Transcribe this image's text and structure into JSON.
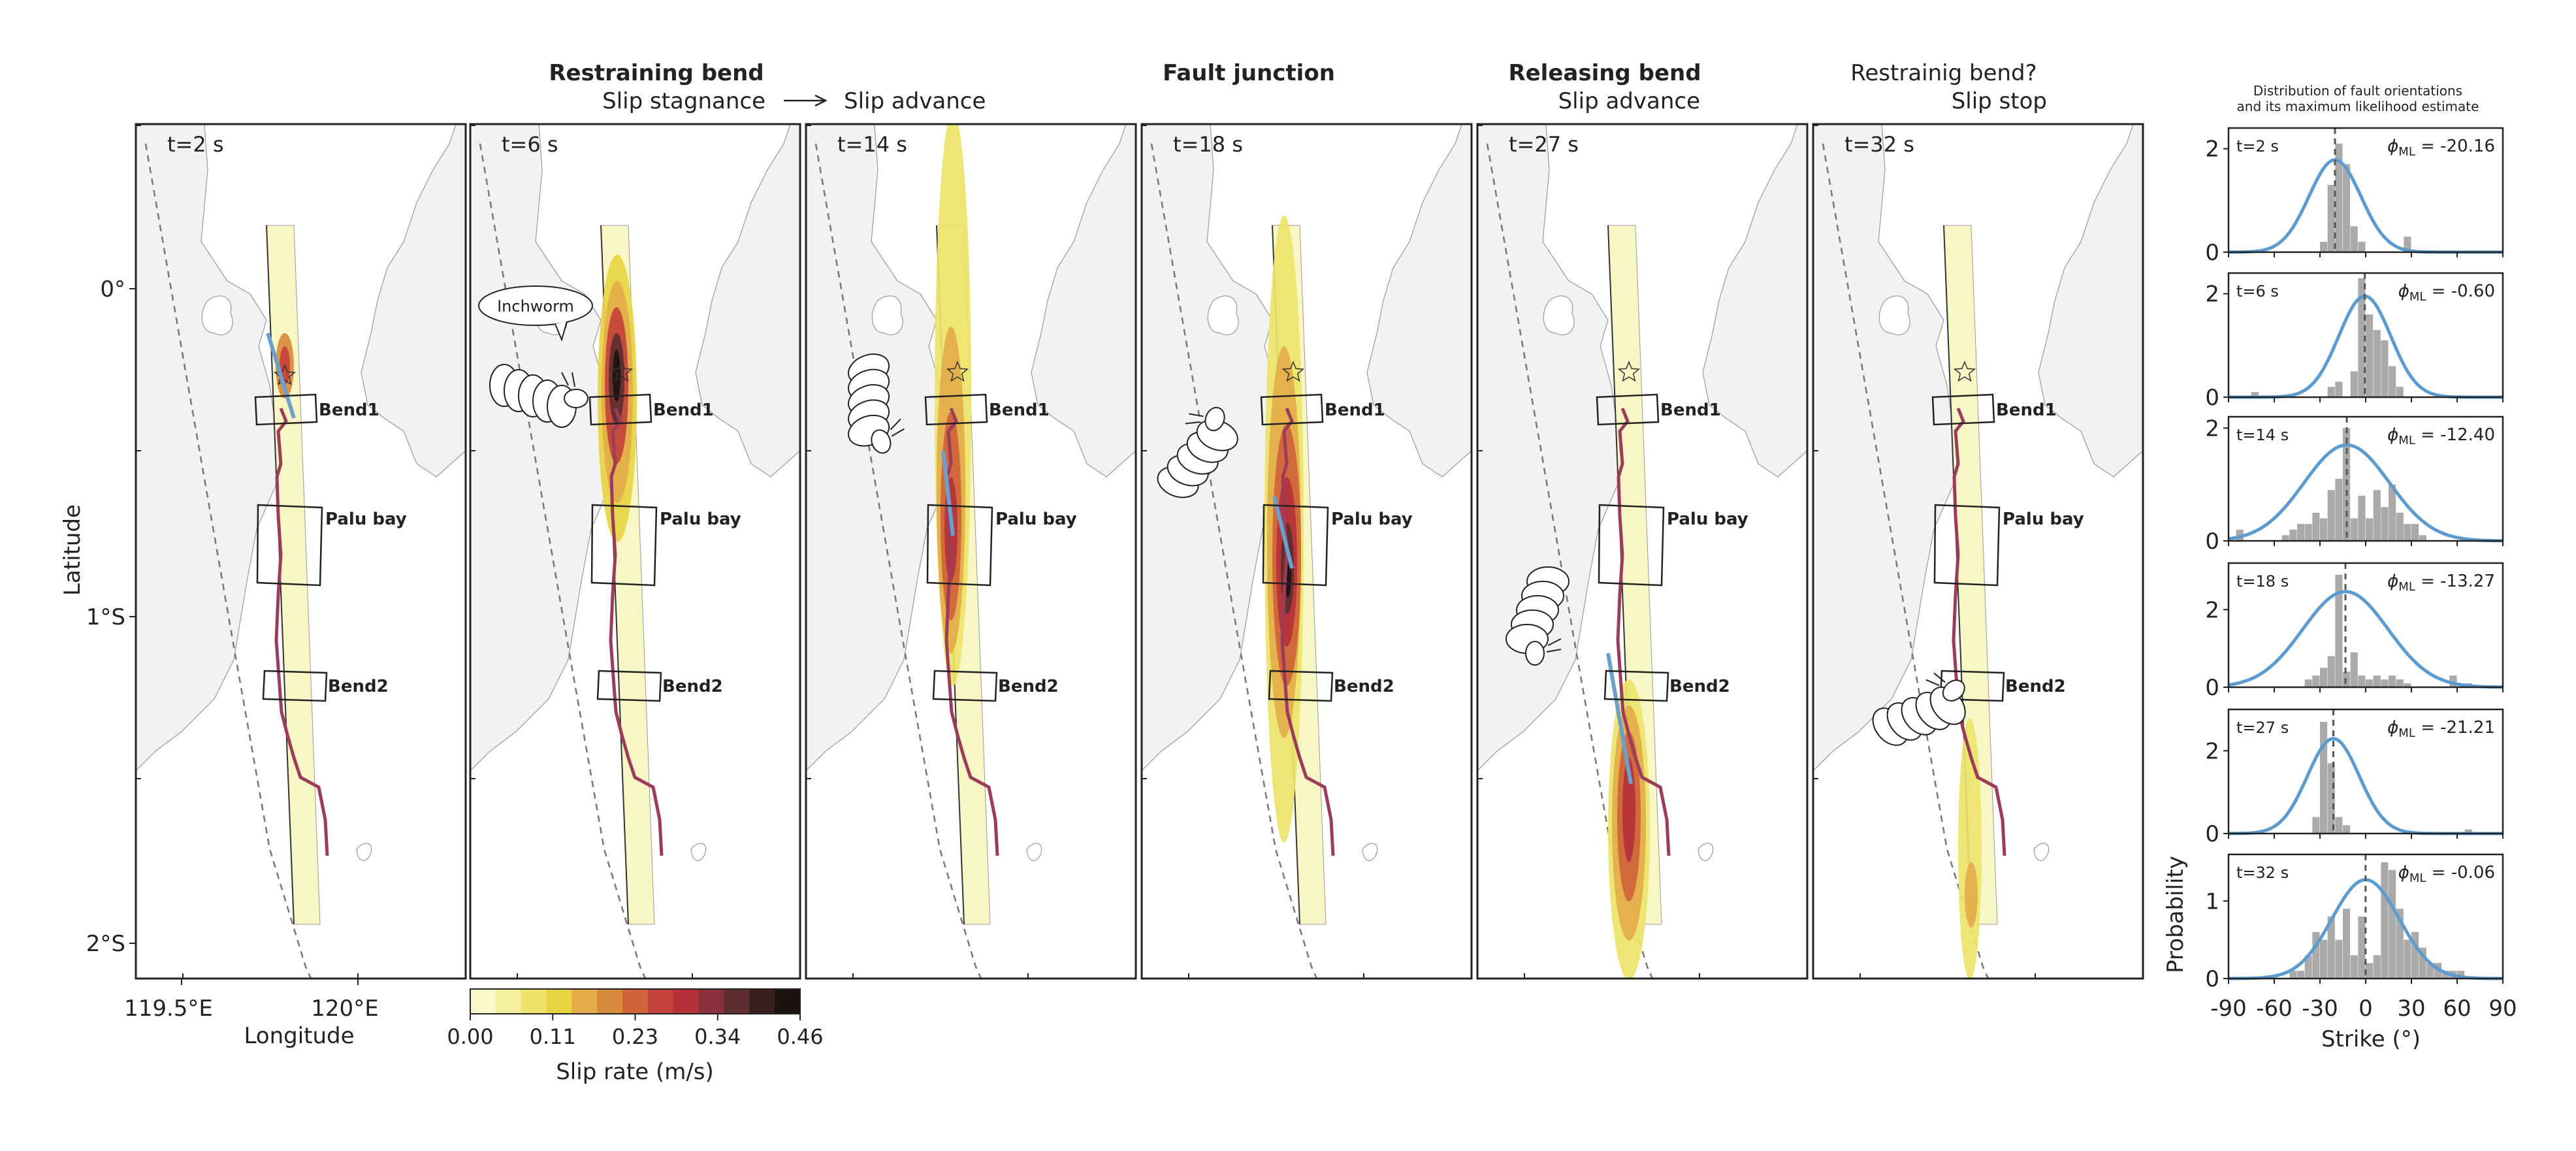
{
  "header": {
    "p2_title": "Restraining bend",
    "p2_sub": "Slip stagnance",
    "p3_sub": "Slip advance",
    "p4_title": "Fault junction",
    "p5_title": "Releasing bend",
    "p5_sub": "Slip advance",
    "p6_title": "Restrainig bend?",
    "p6_sub": "Slip stop",
    "hist_title_line1": "Distribution of fault orientations",
    "hist_title_line2": " and its maximum likelihood estimate"
  },
  "map": {
    "lat_ticks": [
      {
        "value": 0,
        "label": "0°"
      },
      {
        "value": -1,
        "label": "1°S"
      },
      {
        "value": -2,
        "label": "2°S"
      }
    ],
    "lon_ticks": [
      {
        "value": 119.5,
        "label": "119.5°E"
      },
      {
        "value": 120,
        "label": "120°E"
      }
    ],
    "ylabel": "Latitude",
    "xlabel": "Longitude",
    "box_labels": [
      "Bend1",
      "Palu bay",
      "Bend2"
    ],
    "inchworm_label": "Inchworm",
    "colors": {
      "land": "#f2f2f2",
      "strip": "#f8f6c4",
      "fault_trace": "#9b3d5a",
      "strike_line": "#6aa0cb",
      "dashed": "#777777"
    },
    "panels": [
      {
        "time": "t=2 s"
      },
      {
        "time": "t=6 s"
      },
      {
        "time": "t=14 s"
      },
      {
        "time": "t=18 s"
      },
      {
        "time": "t=27 s"
      },
      {
        "time": "t=32 s"
      }
    ]
  },
  "colorbar": {
    "label": "Slip rate (m/s)",
    "ticks": [
      "0.00",
      "0.11",
      "0.23",
      "0.34",
      "0.46"
    ],
    "range": [
      0,
      0.46
    ],
    "colors": [
      "#fbf8cc",
      "#f4ef9c",
      "#ece46a",
      "#e7d443",
      "#e3ac49",
      "#d88a3c",
      "#cf633a",
      "#c4423b",
      "#b5313a",
      "#8c2f3c",
      "#5e2d2f",
      "#3a201d",
      "#1c1210"
    ]
  },
  "chart_data": [
    {
      "type": "bar",
      "panel": "t=2 s",
      "phi_label": "ϕ",
      "phi_sub": "ML",
      "phi_value": "= -20.16",
      "ml_estimate": -20.16,
      "ylim": [
        0,
        2.4
      ],
      "yticks": [
        0,
        2
      ],
      "xlim": [
        -90,
        90
      ],
      "bin_width": 5,
      "bins": [
        -27.5,
        -22.5,
        -17.5,
        -12.5,
        -7.5,
        -2.5,
        27.5
      ],
      "values": [
        0.2,
        1.3,
        2.1,
        1.7,
        0.5,
        0.2,
        0.3
      ],
      "fit_color": "#5b9bd0",
      "bar_color": "#aaaaaa"
    },
    {
      "type": "bar",
      "panel": "t=6 s",
      "phi_label": "ϕ",
      "phi_sub": "ML",
      "phi_value": "= -0.60",
      "ml_estimate": -0.6,
      "ylim": [
        0,
        2.4
      ],
      "yticks": [
        0,
        2
      ],
      "xlim": [
        -90,
        90
      ],
      "bin_width": 5,
      "bins": [
        -72.5,
        -22.5,
        -17.5,
        -7.5,
        -2.5,
        2.5,
        7.5,
        12.5,
        17.5,
        22.5
      ],
      "values": [
        0.1,
        0.2,
        0.3,
        0.5,
        2.3,
        1.6,
        1.3,
        1.1,
        0.6,
        0.2
      ],
      "fit_color": "#5b9bd0",
      "bar_color": "#aaaaaa"
    },
    {
      "type": "bar",
      "panel": "t=14 s",
      "phi_label": "ϕ",
      "phi_sub": "ML",
      "phi_value": "= -12.40",
      "ml_estimate": -12.4,
      "ylim": [
        0,
        2.2
      ],
      "yticks": [
        0,
        2
      ],
      "xlim": [
        -90,
        90
      ],
      "bin_width": 5,
      "bins": [
        -82.5,
        -52.5,
        -47.5,
        -42.5,
        -37.5,
        -32.5,
        -27.5,
        -22.5,
        -17.5,
        -12.5,
        -7.5,
        -2.5,
        2.5,
        7.5,
        12.5,
        17.5,
        22.5,
        27.5,
        32.5,
        37.5
      ],
      "values": [
        0.2,
        0.1,
        0.2,
        0.3,
        0.3,
        0.5,
        0.4,
        0.9,
        1.1,
        2.0,
        0.4,
        0.8,
        0.4,
        0.9,
        0.6,
        1.0,
        0.5,
        0.3,
        0.3,
        0.1
      ],
      "fit_color": "#5b9bd0",
      "bar_color": "#aaaaaa"
    },
    {
      "type": "bar",
      "panel": "t=18 s",
      "phi_label": "ϕ",
      "phi_sub": "ML",
      "phi_value": "= -13.27",
      "ml_estimate": -13.27,
      "ylim": [
        0,
        3.2
      ],
      "yticks": [
        0,
        2
      ],
      "xlim": [
        -90,
        90
      ],
      "bin_width": 5,
      "bins": [
        -37.5,
        -32.5,
        -27.5,
        -22.5,
        -17.5,
        -12.5,
        -7.5,
        -2.5,
        2.5,
        7.5,
        12.5,
        17.5,
        22.5,
        27.5,
        57.5,
        67.5
      ],
      "values": [
        0.2,
        0.3,
        0.5,
        0.8,
        2.9,
        0.4,
        0.9,
        0.3,
        0.2,
        0.3,
        0.2,
        0.3,
        0.2,
        0.1,
        0.3,
        0.1
      ],
      "fit_color": "#5b9bd0",
      "bar_color": "#aaaaaa"
    },
    {
      "type": "bar",
      "panel": "t=27 s",
      "phi_label": "ϕ",
      "phi_sub": "ML",
      "phi_value": "= -21.21",
      "ml_estimate": -21.21,
      "ylim": [
        0,
        3.0
      ],
      "yticks": [
        0,
        2
      ],
      "xlim": [
        -90,
        90
      ],
      "bin_width": 5,
      "bins": [
        -32.5,
        -27.5,
        -22.5,
        -17.5,
        -12.5,
        67.5
      ],
      "values": [
        0.4,
        2.7,
        1.7,
        0.4,
        0.2,
        0.1
      ],
      "fit_color": "#5b9bd0",
      "bar_color": "#aaaaaa"
    },
    {
      "type": "bar",
      "panel": "t=32 s",
      "phi_label": "ϕ",
      "phi_sub": "ML",
      "phi_value": "= -0.06",
      "ml_estimate": -0.06,
      "ylim": [
        0,
        1.6
      ],
      "yticks": [
        0,
        1,
        2
      ],
      "ytick_labels": [
        "0",
        "1",
        "2"
      ],
      "xlim": [
        -90,
        90
      ],
      "bin_width": 5,
      "bins": [
        -47.5,
        -42.5,
        -37.5,
        -32.5,
        -27.5,
        -22.5,
        -17.5,
        -12.5,
        -7.5,
        -2.5,
        2.5,
        7.5,
        12.5,
        17.5,
        22.5,
        27.5,
        32.5,
        37.5,
        42.5,
        47.5,
        52.5,
        57.5,
        62.5
      ],
      "values": [
        0.1,
        0.1,
        0.3,
        0.6,
        0.5,
        0.8,
        0.5,
        0.9,
        0.3,
        0.8,
        0.2,
        0.3,
        1.5,
        1.4,
        0.9,
        0.5,
        0.6,
        0.4,
        0.2,
        0.2,
        0.1,
        0.1,
        0.1
      ],
      "fit_color": "#5b9bd0",
      "bar_color": "#aaaaaa"
    }
  ],
  "hist_axes": {
    "xticks": [
      -90,
      -60,
      -30,
      0,
      30,
      60,
      90
    ],
    "xtick_labels": [
      "-90",
      "-60",
      "-30",
      "0",
      "30",
      "60",
      "90"
    ],
    "xlabel": "Strike (°)",
    "ylabel": "Probability"
  }
}
